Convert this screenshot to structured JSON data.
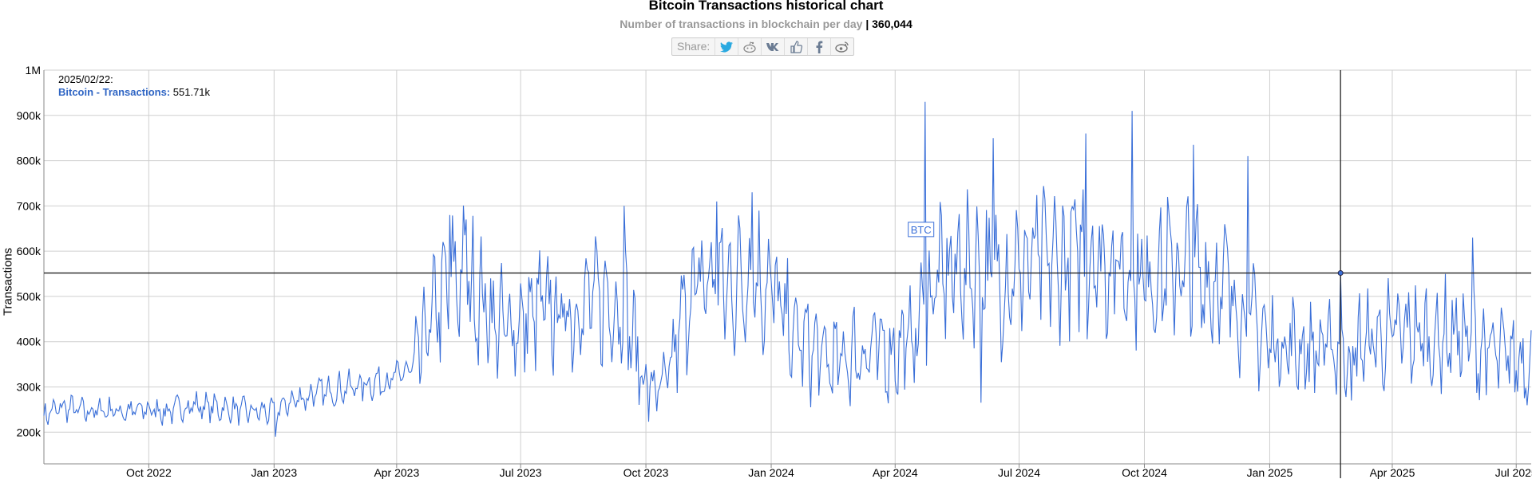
{
  "header": {
    "title": "Bitcoin Transactions historical chart",
    "subtitle": "Number of transactions in blockchain per day",
    "separator": " | ",
    "current_value": "360,044"
  },
  "share": {
    "label": "Share:",
    "icons": [
      "twitter-icon",
      "reddit-icon",
      "vk-icon",
      "like-icon",
      "facebook-icon",
      "weibo-icon"
    ]
  },
  "tooltip": {
    "date": "2025/02/22:",
    "series": "Bitcoin - Transactions:",
    "value": "551.71k"
  },
  "annotation": {
    "label": "BTC"
  },
  "chart_data": {
    "type": "line",
    "title": "Bitcoin Transactions historical chart",
    "subtitle": "Number of transactions in blockchain per day",
    "ylabel": "Transactions",
    "xlabel": "",
    "ylim": [
      130000,
      1000000
    ],
    "xlim": [
      "2022-07-16",
      "2025-07-12"
    ],
    "y_ticks": [
      200000,
      300000,
      400000,
      500000,
      600000,
      700000,
      800000,
      900000,
      1000000
    ],
    "y_tick_labels": [
      "200k",
      "300k",
      "400k",
      "500k",
      "600k",
      "700k",
      "800k",
      "900k",
      "1M"
    ],
    "x_ticks": [
      "2022-10-01",
      "2023-01-01",
      "2023-04-01",
      "2023-07-01",
      "2023-10-01",
      "2024-01-01",
      "2024-04-01",
      "2024-07-01",
      "2024-10-01",
      "2025-01-01",
      "2025-04-01",
      "2025-07-01"
    ],
    "x_tick_labels": [
      "Oct 2022",
      "Jan 2023",
      "Apr 2023",
      "Jul 2023",
      "Oct 2023",
      "Jan 2024",
      "Apr 2024",
      "Jul 2024",
      "Oct 2024",
      "Jan 2025",
      "Apr 2025",
      "Jul 2025"
    ],
    "grid": true,
    "crosshair": {
      "x": "2025-02-22",
      "y": 551710
    },
    "series": [
      {
        "name": "Bitcoin - Transactions",
        "color": "#3a6fd8",
        "points": [
          [
            "2022-07-16",
            240000
          ],
          [
            "2022-08-01",
            255000
          ],
          [
            "2022-08-15",
            245000
          ],
          [
            "2022-09-01",
            250000
          ],
          [
            "2022-09-15",
            245000
          ],
          [
            "2022-10-01",
            250000
          ],
          [
            "2022-10-15",
            245000
          ],
          [
            "2022-11-01",
            260000
          ],
          [
            "2022-11-15",
            255000
          ],
          [
            "2022-12-01",
            250000
          ],
          [
            "2022-12-15",
            245000
          ],
          [
            "2023-01-01",
            245000
          ],
          [
            "2023-01-15",
            270000
          ],
          [
            "2023-02-01",
            285000
          ],
          [
            "2023-02-15",
            295000
          ],
          [
            "2023-03-01",
            300000
          ],
          [
            "2023-03-15",
            310000
          ],
          [
            "2023-04-01",
            320000
          ],
          [
            "2023-04-15",
            350000
          ],
          [
            "2023-05-01",
            480000
          ],
          [
            "2023-05-15",
            550000
          ],
          [
            "2023-06-01",
            500000
          ],
          [
            "2023-06-15",
            430000
          ],
          [
            "2023-07-01",
            440000
          ],
          [
            "2023-07-15",
            470000
          ],
          [
            "2023-08-01",
            460000
          ],
          [
            "2023-08-15",
            480000
          ],
          [
            "2023-09-01",
            490000
          ],
          [
            "2023-09-15",
            480000
          ],
          [
            "2023-10-01",
            300000
          ],
          [
            "2023-10-15",
            290000
          ],
          [
            "2023-11-01",
            500000
          ],
          [
            "2023-11-15",
            540000
          ],
          [
            "2023-12-01",
            520000
          ],
          [
            "2023-12-15",
            550000
          ],
          [
            "2024-01-01",
            520000
          ],
          [
            "2024-01-15",
            420000
          ],
          [
            "2024-02-01",
            380000
          ],
          [
            "2024-02-15",
            350000
          ],
          [
            "2024-03-01",
            370000
          ],
          [
            "2024-03-15",
            380000
          ],
          [
            "2024-04-01",
            380000
          ],
          [
            "2024-04-15",
            410000
          ],
          [
            "2024-05-01",
            530000
          ],
          [
            "2024-05-15",
            560000
          ],
          [
            "2024-06-01",
            560000
          ],
          [
            "2024-06-15",
            540000
          ],
          [
            "2024-07-01",
            560000
          ],
          [
            "2024-07-15",
            580000
          ],
          [
            "2024-08-01",
            570000
          ],
          [
            "2024-08-15",
            600000
          ],
          [
            "2024-09-01",
            580000
          ],
          [
            "2024-09-15",
            560000
          ],
          [
            "2024-10-01",
            540000
          ],
          [
            "2024-10-15",
            560000
          ],
          [
            "2024-11-01",
            560000
          ],
          [
            "2024-11-15",
            540000
          ],
          [
            "2024-12-01",
            520000
          ],
          [
            "2024-12-15",
            460000
          ],
          [
            "2025-01-01",
            400000
          ],
          [
            "2025-01-15",
            390000
          ],
          [
            "2025-02-01",
            380000
          ],
          [
            "2025-02-15",
            390000
          ],
          [
            "2025-03-01",
            380000
          ],
          [
            "2025-03-15",
            400000
          ],
          [
            "2025-04-01",
            410000
          ],
          [
            "2025-04-15",
            420000
          ],
          [
            "2025-05-01",
            400000
          ],
          [
            "2025-05-15",
            420000
          ],
          [
            "2025-06-01",
            390000
          ],
          [
            "2025-06-15",
            370000
          ],
          [
            "2025-07-01",
            360000
          ],
          [
            "2025-07-12",
            360044
          ]
        ],
        "peaks": [
          [
            "2023-05-10",
            680000
          ],
          [
            "2023-05-22",
            670000
          ],
          [
            "2023-09-15",
            700000
          ],
          [
            "2023-11-22",
            710000
          ],
          [
            "2023-12-18",
            730000
          ],
          [
            "2024-04-23",
            930000
          ],
          [
            "2024-06-12",
            850000
          ],
          [
            "2024-06-03",
            265000
          ],
          [
            "2024-08-19",
            860000
          ],
          [
            "2024-09-22",
            910000
          ],
          [
            "2024-11-06",
            835000
          ],
          [
            "2024-12-16",
            810000
          ],
          [
            "2025-02-22",
            551710
          ],
          [
            "2025-05-30",
            630000
          ],
          [
            "2025-03-02",
            270000
          ],
          [
            "2023-01-02",
            190000
          ]
        ]
      }
    ]
  }
}
